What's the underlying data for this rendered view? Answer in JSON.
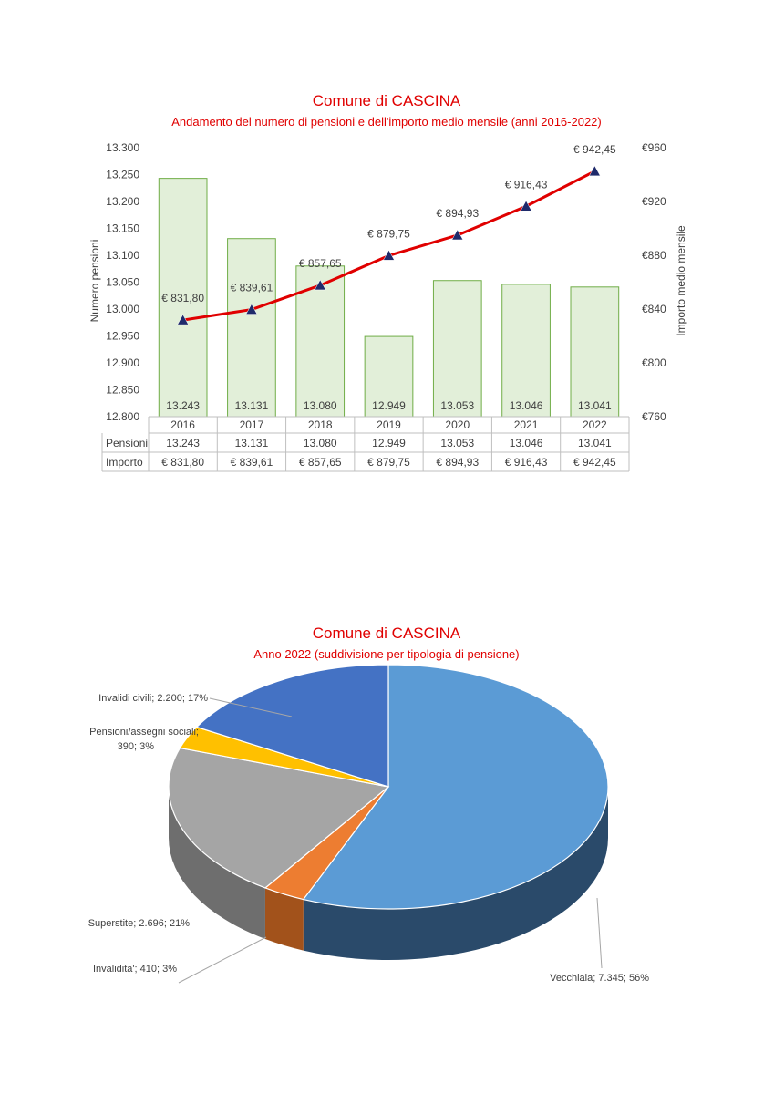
{
  "chart_data": [
    {
      "type": "bar",
      "title": "Comune di CASCINA",
      "subtitle": "Andamento del numero di pensioni e dell'importo medio mensile (anni 2016-2022)",
      "categories": [
        "2016",
        "2017",
        "2018",
        "2019",
        "2020",
        "2021",
        "2022"
      ],
      "ylabel": "Numero pensioni",
      "y2label": "Importo medio mensile",
      "ylim": [
        12800,
        13300
      ],
      "y_ticks": [
        "12.800",
        "12.850",
        "12.900",
        "12.950",
        "13.000",
        "13.050",
        "13.100",
        "13.150",
        "13.200",
        "13.250",
        "13.300"
      ],
      "y2lim": [
        760,
        960
      ],
      "y2_ticks": [
        "€760",
        "€800",
        "€840",
        "€880",
        "€920",
        "€960"
      ],
      "series": [
        {
          "name": "Pensioni",
          "kind": "bar",
          "values": [
            13243,
            13131,
            13080,
            12949,
            13053,
            13046,
            13041
          ],
          "labels": [
            "13.243",
            "13.131",
            "13.080",
            "12.949",
            "13.053",
            "13.046",
            "13.041"
          ]
        },
        {
          "name": "Importo",
          "kind": "line",
          "axis": "secondary",
          "values": [
            831.8,
            839.61,
            857.65,
            879.75,
            894.93,
            916.43,
            942.45
          ],
          "labels": [
            "€ 831,80",
            "€ 839,61",
            "€ 857,65",
            "€ 879,75",
            "€ 894,93",
            "€ 916,43",
            "€ 942,45"
          ]
        }
      ],
      "data_table": true,
      "colors": {
        "bar_fill": "#e2efd9",
        "bar_stroke": "#70ad47",
        "line": "#e00000",
        "marker": "#1f2a6b"
      }
    },
    {
      "type": "pie",
      "title": "Comune di CASCINA",
      "subtitle": "Anno 2022 (suddivisione per tipologia di pensione)",
      "slices": [
        {
          "name": "Vecchiaia",
          "value": 7345,
          "percent": 56,
          "label": "Vecchiaia; 7.345; 56%",
          "color": "#5b9bd5",
          "side": "#2a4a6a"
        },
        {
          "name": "Invalidita'",
          "value": 410,
          "percent": 3,
          "label": "Invalidita'; 410; 3%",
          "color": "#ed7d31",
          "side": "#a2521b"
        },
        {
          "name": "Superstite",
          "value": 2696,
          "percent": 21,
          "label": "Superstite; 2.696; 21%",
          "color": "#a5a5a5",
          "side": "#6e6e6e"
        },
        {
          "name": "Pensioni/assegni sociali",
          "value": 390,
          "percent": 3,
          "label_lines": [
            "Pensioni/assegni sociali;",
            "390; 3%"
          ],
          "color": "#ffc000",
          "side": "#b38600"
        },
        {
          "name": "Invalidi civili",
          "value": 2200,
          "percent": 17,
          "label": "Invalidi civili; 2.200; 17%",
          "color": "#4472c4",
          "side": "#2c4a80"
        }
      ]
    }
  ]
}
